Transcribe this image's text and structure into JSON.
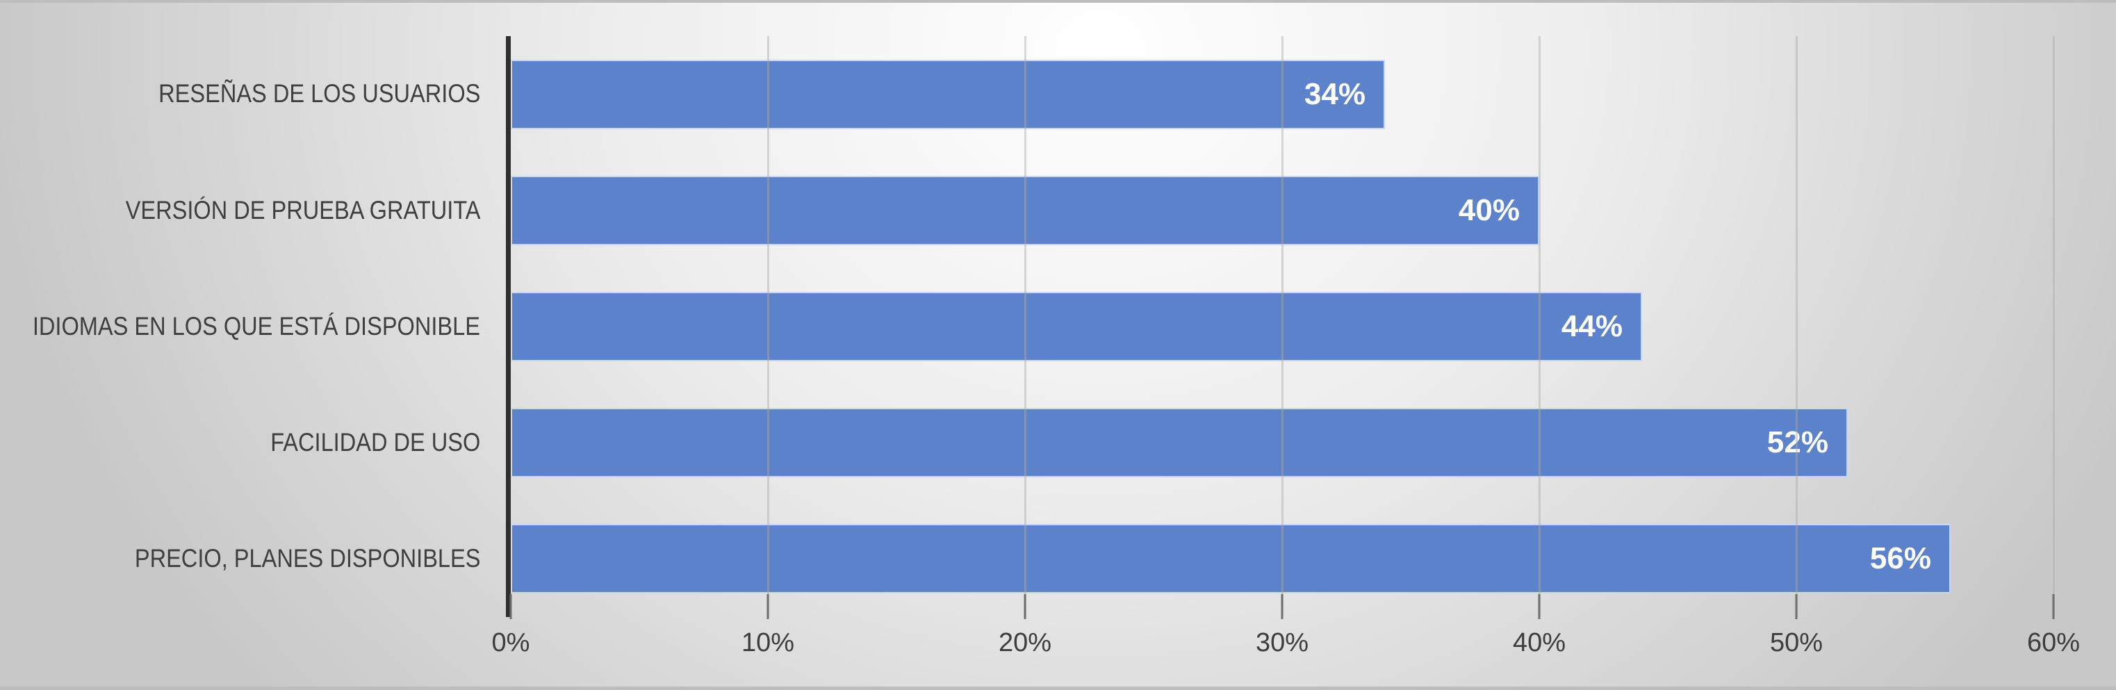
{
  "chart_data": {
    "type": "bar",
    "orientation": "horizontal",
    "title": "",
    "xlabel": "",
    "ylabel": "",
    "categories": [
      "RESEÑAS DE LOS USUARIOS",
      "VERSIÓN DE PRUEBA GRATUITA",
      "IDIOMAS EN LOS QUE ESTÁ DISPONIBLE",
      "FACILIDAD DE USO",
      "PRECIO, PLANES DISPONIBLES"
    ],
    "values": [
      34,
      40,
      44,
      52,
      56
    ],
    "value_labels": [
      "34%",
      "40%",
      "44%",
      "52%",
      "56%"
    ],
    "x_ticks": [
      "0%",
      "10%",
      "20%",
      "30%",
      "40%",
      "50%",
      "60%"
    ],
    "xlim": [
      0,
      60
    ],
    "grid": "vertical-gridlines-on",
    "legend": "none",
    "value_label_position": "inside-end",
    "colors": {
      "bar": "#5C82CB",
      "bar_border": "#CCD6ED",
      "value_label": "#FFFFFF",
      "category_label": "#3F3F3F",
      "tick_label": "#3D3D3D",
      "gridline": "#ABABAB",
      "axis_line": "#2F2F2F",
      "tick_mark": "#6F6F6F",
      "slide_edge": "#BDBDBD",
      "background_center": "#FFFFFF",
      "background_corner": "#C8C8C8"
    }
  }
}
